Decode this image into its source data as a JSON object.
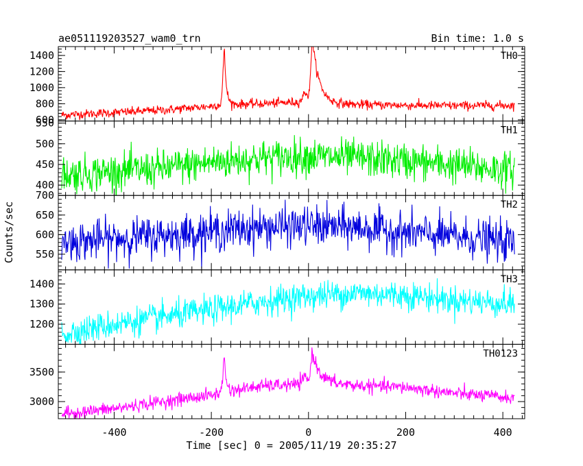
{
  "chart_data": {
    "type": "line",
    "title": "ae051119203527_wam0_trn",
    "subtitle": "Bin time: 1.0 s",
    "xlabel": "Time [sec] 0 = 2005/11/19 20:35:27",
    "ylabel": "Counts/sec",
    "xlim": [
      -515,
      445
    ],
    "x_ticks": [
      -400,
      -200,
      0,
      200,
      400
    ],
    "x_range_data": [
      -508,
      424
    ],
    "bin_time": 1.0,
    "panels": [
      {
        "name": "TH0",
        "color": "#ff0000",
        "ylim": [
          585,
          1510
        ],
        "y_ticks": [
          600,
          800,
          1000,
          1200,
          1400
        ],
        "baseline": [
          [
            -508,
            660
          ],
          [
            -400,
            690
          ],
          [
            -300,
            720
          ],
          [
            -200,
            770
          ],
          [
            -180,
            790
          ],
          [
            -100,
            800
          ],
          [
            -20,
            820
          ],
          [
            0,
            830
          ],
          [
            40,
            800
          ],
          [
            100,
            790
          ],
          [
            200,
            780
          ],
          [
            300,
            775
          ],
          [
            424,
            780
          ]
        ],
        "noise": 28,
        "peaks": [
          [
            -173,
            650,
            3,
            4
          ],
          [
            8,
            760,
            3,
            14
          ],
          [
            -5,
            120,
            6,
            6
          ]
        ]
      },
      {
        "name": "TH1",
        "color": "#00ee00",
        "ylim": [
          375,
          555
        ],
        "y_ticks": [
          400,
          450,
          500,
          550
        ],
        "baseline": [
          [
            -508,
            425
          ],
          [
            -300,
            440
          ],
          [
            -200,
            455
          ],
          [
            -100,
            465
          ],
          [
            0,
            470
          ],
          [
            100,
            465
          ],
          [
            200,
            458
          ],
          [
            300,
            448
          ],
          [
            424,
            435
          ]
        ],
        "noise": 22,
        "peaks": []
      },
      {
        "name": "TH2",
        "color": "#0000dd",
        "ylim": [
          510,
          700
        ],
        "y_ticks": [
          550,
          600,
          650,
          700
        ],
        "baseline": [
          [
            -508,
            580
          ],
          [
            -300,
            598
          ],
          [
            -200,
            608
          ],
          [
            -100,
            618
          ],
          [
            0,
            622
          ],
          [
            100,
            618
          ],
          [
            200,
            605
          ],
          [
            300,
            595
          ],
          [
            424,
            580
          ]
        ],
        "noise": 25,
        "peaks": []
      },
      {
        "name": "TH3",
        "color": "#00ffff",
        "ylim": [
          1100,
          1470
        ],
        "y_ticks": [
          1200,
          1300,
          1400
        ],
        "baseline": [
          [
            -508,
            1150
          ],
          [
            -400,
            1200
          ],
          [
            -300,
            1235
          ],
          [
            -200,
            1270
          ],
          [
            -100,
            1310
          ],
          [
            0,
            1340
          ],
          [
            100,
            1355
          ],
          [
            200,
            1345
          ],
          [
            300,
            1320
          ],
          [
            424,
            1300
          ]
        ],
        "noise": 35,
        "peaks": []
      },
      {
        "name": "TH0123",
        "color": "#ff00ff",
        "ylim": [
          2710,
          3970
        ],
        "y_ticks": [
          3000,
          3500
        ],
        "baseline": [
          [
            -508,
            2790
          ],
          [
            -400,
            2880
          ],
          [
            -300,
            3000
          ],
          [
            -200,
            3110
          ],
          [
            -180,
            3150
          ],
          [
            -100,
            3260
          ],
          [
            0,
            3300
          ],
          [
            40,
            3300
          ],
          [
            100,
            3270
          ],
          [
            200,
            3240
          ],
          [
            300,
            3140
          ],
          [
            424,
            3060
          ]
        ],
        "noise": 55,
        "peaks": [
          [
            -173,
            560,
            3,
            4
          ],
          [
            8,
            520,
            3,
            16
          ],
          [
            -5,
            120,
            6,
            6
          ]
        ]
      }
    ]
  }
}
